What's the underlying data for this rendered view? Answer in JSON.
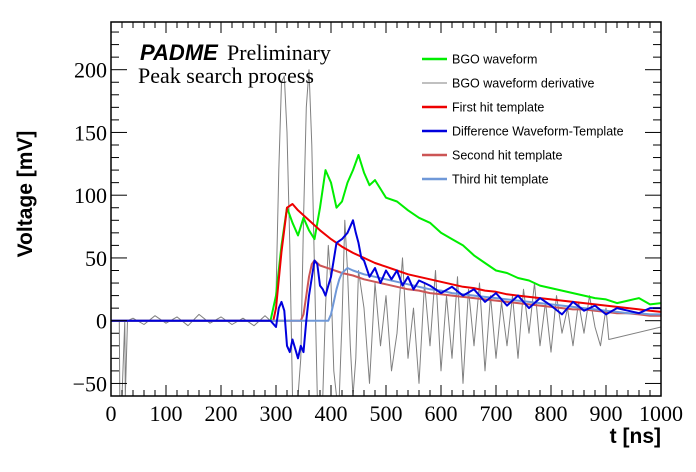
{
  "chart_data": {
    "type": "line",
    "title": "",
    "annotations": {
      "brand": "PADME",
      "brand_suffix": "Preliminary",
      "subtitle": "Peak search process"
    },
    "xlabel": "t [ns]",
    "ylabel": "Voltage [mV]",
    "xlim": [
      0,
      1000
    ],
    "ylim": [
      -60,
      238
    ],
    "xticks": [
      0,
      100,
      200,
      300,
      400,
      500,
      600,
      700,
      800,
      900,
      1000
    ],
    "yticks": [
      -50,
      0,
      50,
      100,
      150,
      200
    ],
    "grid": false,
    "legend_position": "top-right",
    "series": [
      {
        "name": "BGO waveform",
        "color": "#00ee00",
        "x": [
          0,
          290,
          300,
          310,
          320,
          330,
          340,
          350,
          360,
          370,
          380,
          390,
          400,
          410,
          420,
          430,
          440,
          450,
          460,
          470,
          480,
          500,
          520,
          540,
          560,
          580,
          600,
          620,
          640,
          660,
          680,
          700,
          720,
          740,
          760,
          780,
          800,
          820,
          840,
          860,
          880,
          900,
          920,
          940,
          960,
          980,
          1000
        ],
        "y": [
          0,
          0,
          20,
          60,
          90,
          78,
          68,
          82,
          72,
          65,
          90,
          120,
          110,
          90,
          95,
          110,
          120,
          132,
          118,
          108,
          112,
          98,
          95,
          88,
          82,
          78,
          70,
          65,
          60,
          52,
          46,
          40,
          38,
          34,
          32,
          28,
          26,
          24,
          22,
          20,
          18,
          17,
          14,
          16,
          18,
          13,
          14
        ]
      },
      {
        "name": "BGO waveform derivative",
        "color": "#808080",
        "x": [
          0,
          15,
          16,
          20,
          25,
          26,
          30,
          40,
          60,
          80,
          100,
          120,
          140,
          160,
          180,
          200,
          220,
          240,
          260,
          280,
          290,
          300,
          305,
          310,
          315,
          320,
          325,
          330,
          335,
          340,
          345,
          350,
          355,
          360,
          365,
          370,
          375,
          380,
          385,
          390,
          395,
          400,
          405,
          410,
          415,
          420,
          425,
          430,
          435,
          440,
          445,
          450,
          460,
          470,
          480,
          490,
          500,
          510,
          520,
          530,
          540,
          550,
          560,
          570,
          580,
          590,
          600,
          610,
          620,
          630,
          640,
          650,
          660,
          670,
          680,
          690,
          700,
          710,
          720,
          730,
          740,
          750,
          760,
          770,
          780,
          790,
          800,
          810,
          820,
          830,
          840,
          850,
          860,
          870,
          880,
          890,
          900,
          905,
          1000
        ],
        "y": [
          0,
          0,
          -70,
          -70,
          0,
          -70,
          0,
          2,
          -3,
          4,
          -2,
          3,
          -4,
          5,
          -2,
          3,
          -3,
          2,
          -4,
          4,
          0,
          20,
          120,
          190,
          195,
          150,
          60,
          -70,
          -80,
          -70,
          -30,
          80,
          170,
          200,
          140,
          40,
          -70,
          -80,
          -60,
          10,
          60,
          30,
          -40,
          -70,
          -60,
          0,
          80,
          40,
          -20,
          -60,
          -30,
          40,
          10,
          -50,
          30,
          -20,
          20,
          -40,
          -10,
          50,
          -30,
          10,
          -50,
          30,
          -20,
          40,
          -40,
          20,
          -30,
          35,
          -50,
          25,
          -20,
          30,
          -40,
          20,
          -30,
          15,
          -20,
          20,
          -30,
          25,
          -10,
          30,
          -20,
          15,
          -25,
          20,
          -10,
          10,
          -20,
          15,
          -10,
          20,
          -5,
          -20,
          10,
          -15,
          -5
        ]
      },
      {
        "name": "First hit template",
        "color": "#ee0000",
        "x": [
          0,
          295,
          300,
          310,
          320,
          330,
          340,
          360,
          380,
          400,
          420,
          440,
          460,
          480,
          500,
          520,
          540,
          560,
          580,
          600,
          620,
          640,
          660,
          680,
          700,
          720,
          740,
          760,
          780,
          800,
          820,
          840,
          860,
          880,
          900,
          920,
          940,
          960,
          980,
          1000
        ],
        "y": [
          0,
          0,
          10,
          55,
          90,
          93,
          88,
          80,
          72,
          65,
          59,
          54,
          50,
          46,
          43,
          40,
          37,
          35,
          33,
          31,
          29,
          27,
          26,
          24,
          23,
          21,
          20,
          19,
          18,
          17,
          16,
          15,
          14,
          13,
          12,
          11,
          10,
          9,
          8,
          7
        ]
      },
      {
        "name": "Difference Waveform-Template",
        "color": "#0000dd",
        "x": [
          0,
          290,
          300,
          305,
          310,
          315,
          320,
          325,
          330,
          340,
          345,
          350,
          355,
          360,
          370,
          375,
          380,
          385,
          390,
          395,
          400,
          410,
          420,
          430,
          440,
          445,
          450,
          455,
          460,
          470,
          480,
          490,
          500,
          510,
          520,
          530,
          540,
          550,
          560,
          570,
          580,
          600,
          620,
          640,
          660,
          680,
          700,
          720,
          740,
          760,
          780,
          800,
          820,
          840,
          860,
          880,
          900,
          920,
          940,
          960,
          980,
          1000
        ],
        "y": [
          0,
          0,
          -5,
          10,
          15,
          8,
          -20,
          -25,
          -15,
          -30,
          -20,
          -25,
          0,
          20,
          48,
          45,
          28,
          25,
          20,
          28,
          35,
          62,
          65,
          70,
          80,
          70,
          62,
          50,
          48,
          35,
          42,
          30,
          40,
          33,
          40,
          28,
          35,
          25,
          32,
          30,
          28,
          22,
          27,
          20,
          25,
          15,
          22,
          12,
          20,
          10,
          18,
          12,
          5,
          15,
          8,
          12,
          5,
          10,
          8,
          6,
          10,
          10
        ]
      },
      {
        "name": "Second hit template",
        "color": "#cc5555",
        "x": [
          0,
          345,
          350,
          355,
          360,
          365,
          370,
          375,
          380,
          400,
          420,
          440,
          460,
          480,
          500,
          520,
          540,
          560,
          580,
          600,
          620,
          640,
          660,
          680,
          700,
          720,
          740,
          760,
          780,
          800,
          820,
          840,
          860,
          880,
          900,
          920,
          940,
          960,
          980,
          1000
        ],
        "y": [
          0,
          0,
          5,
          20,
          35,
          45,
          48,
          46,
          44,
          41,
          38,
          36,
          33,
          31,
          29,
          27,
          25,
          24,
          22,
          21,
          20,
          19,
          18,
          17,
          16,
          15,
          14,
          13,
          12,
          11,
          10,
          9,
          9,
          8,
          7,
          6,
          6,
          5,
          4,
          4
        ]
      },
      {
        "name": "Third hit template",
        "color": "#6f98d8",
        "x": [
          0,
          395,
          400,
          405,
          410,
          415,
          420,
          425,
          430,
          440,
          460,
          480,
          500,
          520,
          540,
          560,
          580,
          600,
          620,
          640,
          660,
          680,
          700,
          720,
          740,
          760,
          780,
          800,
          820,
          840,
          860,
          880,
          900,
          920,
          940,
          960,
          980,
          1000
        ],
        "y": [
          0,
          0,
          5,
          15,
          25,
          33,
          38,
          40,
          42,
          40,
          37,
          35,
          33,
          31,
          29,
          27,
          25,
          24,
          22,
          21,
          20,
          19,
          18,
          17,
          16,
          15,
          14,
          13,
          12,
          11,
          10,
          9,
          8,
          7,
          6,
          6,
          5,
          5
        ]
      }
    ]
  }
}
